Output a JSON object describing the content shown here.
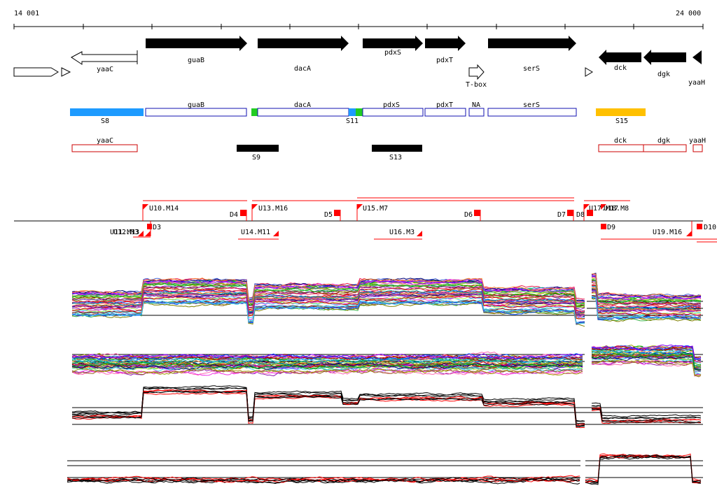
{
  "header": {
    "start_coord": "14 001",
    "end_coord": "24 000"
  },
  "colors": {
    "accent_blue": "#1e9bff",
    "accent_green": "#22cc22",
    "accent_gold": "#ffc000",
    "transcript_red": "#ff0000",
    "cds_outline_blue": "#1010b0"
  },
  "genes_forward": [
    {
      "name": "guaB"
    },
    {
      "name": "dacA"
    },
    {
      "name": "pdxS"
    },
    {
      "name": "pdxT"
    },
    {
      "name": "serS"
    }
  ],
  "genes_reverse": [
    {
      "name": "yaaC"
    },
    {
      "name": "dck"
    },
    {
      "name": "dgk"
    },
    {
      "name": "yaaH"
    }
  ],
  "riboswitch_label": "T-box",
  "segments_top": [
    {
      "name": "S8",
      "color": "#1e9bff"
    },
    {
      "name": "guaB"
    },
    {
      "name": "dacA"
    },
    {
      "name": "S11"
    },
    {
      "name": "pdxS"
    },
    {
      "name": "pdxT"
    },
    {
      "name": "NA"
    },
    {
      "name": "serS"
    },
    {
      "name": "S15",
      "color": "#ffc000"
    }
  ],
  "segments_bottom": [
    {
      "name": "yaaC"
    },
    {
      "name": "S9"
    },
    {
      "name": "S13"
    },
    {
      "name": "dck"
    },
    {
      "name": "dgk"
    },
    {
      "name": "yaaH"
    }
  ],
  "upshifts": [
    {
      "label": "U10.M14"
    },
    {
      "label": "U13.M16"
    },
    {
      "label": "U15.M7"
    },
    {
      "label": "U17.M17"
    },
    {
      "label": "U18.M8"
    }
  ],
  "upshifts_reverse": [
    {
      "label": "U11.M13"
    },
    {
      "label": "U12.M3"
    },
    {
      "label": "U14.M11"
    },
    {
      "label": "U16.M3"
    },
    {
      "label": "U19.M16"
    }
  ],
  "downshifts": [
    {
      "label": "D3"
    },
    {
      "label": "D4"
    },
    {
      "label": "D5"
    },
    {
      "label": "D6"
    },
    {
      "label": "D7"
    },
    {
      "label": "D8"
    },
    {
      "label": "D9"
    },
    {
      "label": "D10"
    }
  ],
  "expression_tracks": [
    {
      "name": "profile-track-forward-multicolor"
    },
    {
      "name": "profile-track-reverse-multicolor"
    },
    {
      "name": "profile-track-forward-summary"
    },
    {
      "name": "profile-track-reverse-summary"
    }
  ]
}
